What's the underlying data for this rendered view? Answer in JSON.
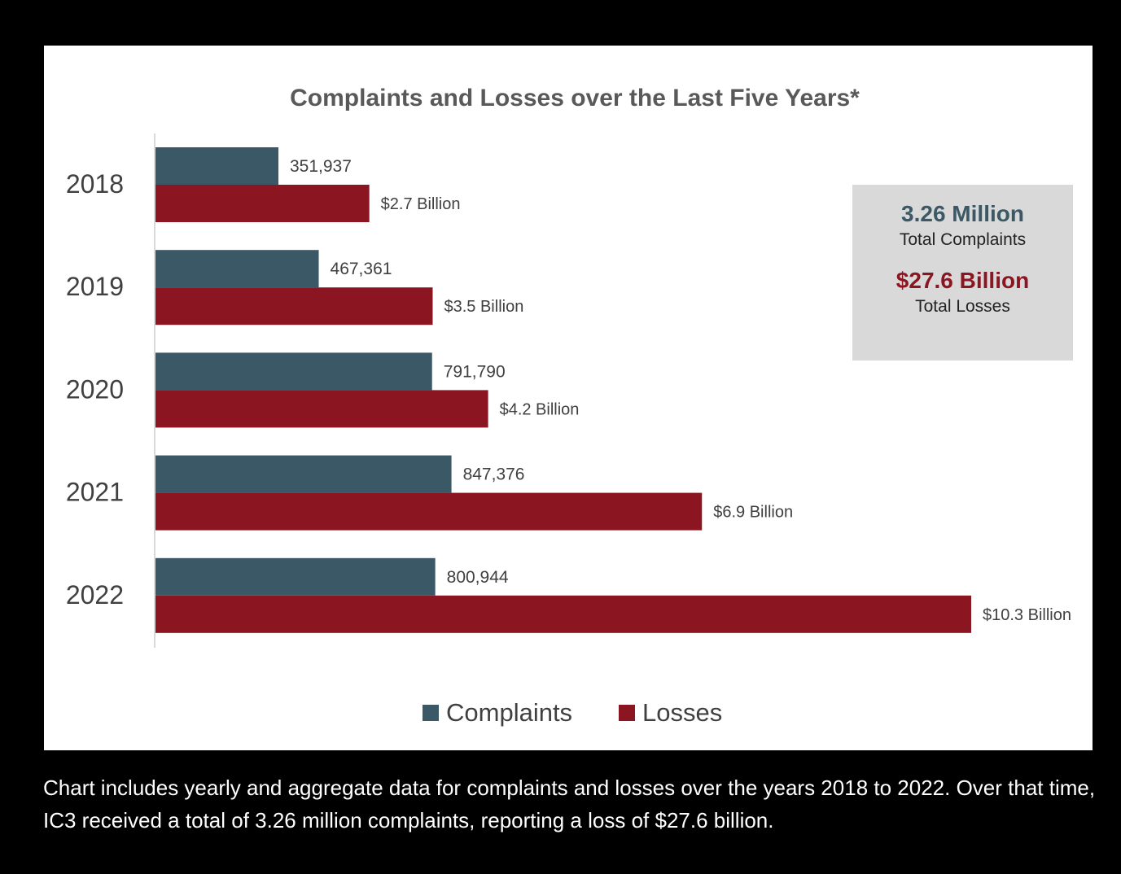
{
  "chart_data": {
    "type": "bar",
    "orientation": "horizontal",
    "title": "Complaints and Losses over the Last Five Years*",
    "categories": [
      "2018",
      "2019",
      "2020",
      "2021",
      "2022"
    ],
    "series": [
      {
        "name": "Complaints",
        "color": "#3b5866",
        "values": [
          351937,
          467361,
          791790,
          847376,
          800944
        ],
        "labels": [
          "351,937",
          "467,361",
          "791,790",
          "847,376",
          "800,944"
        ]
      },
      {
        "name": "Losses",
        "color": "#8b1520",
        "values": [
          2.7,
          3.5,
          4.2,
          6.9,
          10.3
        ],
        "labels": [
          "$2.7 Billion",
          "$3.5 Billion",
          "$4.2 Billion",
          "$6.9 Billion",
          "$10.3 Billion"
        ]
      }
    ],
    "legend": "bottom",
    "grid": false
  },
  "summary": {
    "complaints_value": "3.26 Million",
    "complaints_label": "Total Complaints",
    "losses_value": "$27.6 Billion",
    "losses_label": "Total Losses",
    "complaints_color": "#3b5866",
    "losses_color": "#8b1520"
  },
  "caption": "Chart includes yearly and aggregate data for complaints and losses over the years 2018 to 2022. Over that time, IC3 received a total of 3.26 million complaints, reporting a loss of $27.6 billion."
}
